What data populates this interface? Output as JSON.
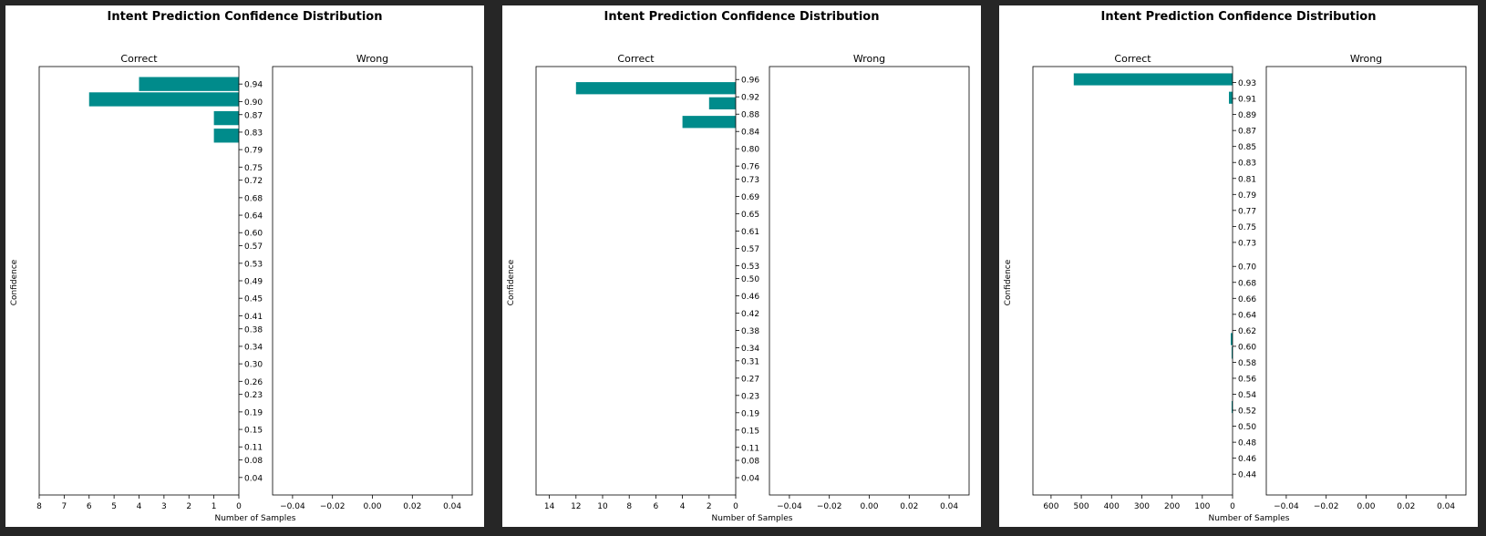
{
  "colors": {
    "bar": "#008b8b",
    "background": "#262626",
    "panel": "#ffffff",
    "axis": "#000000"
  },
  "chart_data": [
    {
      "type": "bar",
      "orientation": "horizontal",
      "title": "Intent Prediction Confidence Distribution",
      "ylabel": "Confidence",
      "xlabel": "Number of Samples",
      "ylim": [
        0.0,
        0.98
      ],
      "yticks": [
        "0.04",
        "0.08",
        "0.11",
        "0.15",
        "0.19",
        "0.23",
        "0.26",
        "0.30",
        "0.34",
        "0.38",
        "0.41",
        "0.45",
        "0.49",
        "0.53",
        "0.57",
        "0.60",
        "0.64",
        "0.68",
        "0.72",
        "0.75",
        "0.79",
        "0.83",
        "0.87",
        "0.90",
        "0.94"
      ],
      "subplots": [
        {
          "name": "Correct",
          "inverted": true,
          "xlim": [
            0,
            8
          ],
          "xticks": [
            "0",
            "1",
            "2",
            "3",
            "4",
            "5",
            "6",
            "7",
            "8"
          ],
          "bars": [
            {
              "center": 0.94,
              "height": 0.032,
              "value": 4
            },
            {
              "center": 0.905,
              "height": 0.032,
              "value": 6
            },
            {
              "center": 0.862,
              "height": 0.032,
              "value": 1
            },
            {
              "center": 0.822,
              "height": 0.032,
              "value": 1
            }
          ]
        },
        {
          "name": "Wrong",
          "inverted": false,
          "xlim": [
            -0.05,
            0.05
          ],
          "xticks": [
            "−0.04",
            "−0.02",
            "0.00",
            "0.02",
            "0.04"
          ],
          "bars": []
        }
      ]
    },
    {
      "type": "bar",
      "orientation": "horizontal",
      "title": "Intent Prediction Confidence Distribution",
      "ylabel": "Confidence",
      "xlabel": "Number of Samples",
      "ylim": [
        0.0,
        0.99
      ],
      "yticks": [
        "0.04",
        "0.08",
        "0.11",
        "0.15",
        "0.19",
        "0.23",
        "0.27",
        "0.31",
        "0.34",
        "0.38",
        "0.42",
        "0.46",
        "0.50",
        "0.53",
        "0.57",
        "0.61",
        "0.65",
        "0.69",
        "0.73",
        "0.76",
        "0.80",
        "0.84",
        "0.88",
        "0.92",
        "0.96"
      ],
      "subplots": [
        {
          "name": "Correct",
          "inverted": true,
          "xlim": [
            0,
            15
          ],
          "xticks": [
            "0",
            "2",
            "4",
            "6",
            "8",
            "10",
            "12",
            "14"
          ],
          "bars": [
            {
              "center": 0.94,
              "height": 0.028,
              "value": 12
            },
            {
              "center": 0.905,
              "height": 0.028,
              "value": 2
            },
            {
              "center": 0.862,
              "height": 0.028,
              "value": 4
            }
          ]
        },
        {
          "name": "Wrong",
          "inverted": false,
          "xlim": [
            -0.05,
            0.05
          ],
          "xticks": [
            "−0.04",
            "−0.02",
            "0.00",
            "0.02",
            "0.04"
          ],
          "bars": []
        }
      ]
    },
    {
      "type": "bar",
      "orientation": "horizontal",
      "title": "Intent Prediction Confidence Distribution",
      "ylabel": "Confidence",
      "xlabel": "Number of Samples",
      "ylim": [
        0.414,
        0.95
      ],
      "yticks": [
        "0.44",
        "0.46",
        "0.48",
        "0.50",
        "0.52",
        "0.54",
        "0.56",
        "0.58",
        "0.60",
        "0.62",
        "0.64",
        "0.66",
        "0.68",
        "0.70",
        "0.73",
        "0.75",
        "0.77",
        "0.79",
        "0.81",
        "0.83",
        "0.85",
        "0.87",
        "0.89",
        "0.91",
        "0.93"
      ],
      "subplots": [
        {
          "name": "Correct",
          "inverted": true,
          "xlim": [
            0,
            660
          ],
          "xticks": [
            "0",
            "100",
            "200",
            "300",
            "400",
            "500",
            "600"
          ],
          "bars": [
            {
              "center": 0.934,
              "height": 0.015,
              "value": 525
            },
            {
              "center": 0.911,
              "height": 0.015,
              "value": 12
            },
            {
              "center": 0.609,
              "height": 0.015,
              "value": 6
            },
            {
              "center": 0.592,
              "height": 0.015,
              "value": 3
            },
            {
              "center": 0.524,
              "height": 0.015,
              "value": 3
            }
          ]
        },
        {
          "name": "Wrong",
          "inverted": false,
          "xlim": [
            -0.05,
            0.05
          ],
          "xticks": [
            "−0.04",
            "−0.02",
            "0.00",
            "0.02",
            "0.04"
          ],
          "bars": []
        }
      ]
    }
  ]
}
